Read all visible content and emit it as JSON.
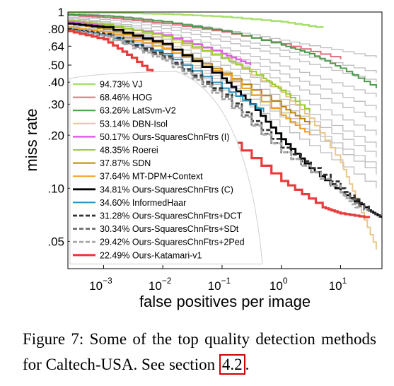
{
  "chart_data": {
    "type": "line",
    "xlabel": "false positives per image",
    "ylabel": "miss rate",
    "xscale": "log",
    "yscale": "log",
    "xlim": [
      0.00025,
      50
    ],
    "ylim": [
      0.035,
      1
    ],
    "x_ticks": [
      {
        "value": 0.001,
        "base": "10",
        "exp": "−3"
      },
      {
        "value": 0.01,
        "base": "10",
        "exp": "−2"
      },
      {
        "value": 0.1,
        "base": "10",
        "exp": "−1"
      },
      {
        "value": 1,
        "base": "10",
        "exp": "0"
      },
      {
        "value": 10,
        "base": "10",
        "exp": "1"
      }
    ],
    "y_ticks": [
      {
        "value": 1,
        "label": "1"
      },
      {
        "value": 0.8,
        "label": ".80"
      },
      {
        "value": 0.64,
        "label": ".64"
      },
      {
        "value": 0.5,
        "label": ".50"
      },
      {
        "value": 0.4,
        "label": ".40"
      },
      {
        "value": 0.3,
        "label": ".30"
      },
      {
        "value": 0.2,
        "label": ".20"
      },
      {
        "value": 0.1,
        "label": ".10"
      },
      {
        "value": 0.05,
        "label": ".05"
      }
    ],
    "grid": false,
    "legend_position": "bottom-left",
    "background_series_color": "#bdbdbd",
    "series": [
      {
        "name": "94.73% VJ",
        "color": "#a8e06e",
        "dash": "solid",
        "width": 2.5,
        "x": [
          0.00025,
          0.001,
          0.01,
          0.1,
          1,
          5
        ],
        "y": [
          0.995,
          0.99,
          0.975,
          0.94,
          0.88,
          0.81
        ]
      },
      {
        "name": "68.46% HOG",
        "color": "#e06e7e",
        "dash": "solid",
        "width": 2,
        "x": [
          0.00025,
          0.001,
          0.01,
          0.1,
          1,
          10
        ],
        "y": [
          0.96,
          0.93,
          0.86,
          0.77,
          0.66,
          0.54
        ]
      },
      {
        "name": "63.26% LatSvm-V2",
        "color": "#4a9a4a",
        "dash": "solid",
        "width": 2,
        "x": [
          0.00025,
          0.001,
          0.01,
          0.1,
          1,
          3,
          10,
          40
        ],
        "y": [
          0.97,
          0.95,
          0.88,
          0.78,
          0.65,
          0.58,
          0.48,
          0.37
        ]
      },
      {
        "name": "53.14% DBN-Isol",
        "color": "#e8c78c",
        "dash": "solid",
        "width": 2,
        "x": [
          0.00025,
          0.001,
          0.01,
          0.1,
          1,
          3,
          10,
          20,
          40
        ],
        "y": [
          0.86,
          0.82,
          0.7,
          0.55,
          0.35,
          0.25,
          0.14,
          0.08,
          0.045
        ]
      },
      {
        "name": "50.17% Ours-SquaresChnFtrs (I)",
        "color": "#e25ee8",
        "dash": "solid",
        "width": 2.5,
        "x": [
          0.00025,
          0.001,
          0.01,
          0.1,
          0.3
        ],
        "y": [
          0.88,
          0.84,
          0.74,
          0.58,
          0.5
        ]
      },
      {
        "name": "48.35% Roerei",
        "color": "#9acd32",
        "dash": "solid",
        "width": 2,
        "x": [
          0.00025,
          0.001,
          0.01,
          0.1,
          0.5,
          1,
          3
        ],
        "y": [
          0.9,
          0.85,
          0.73,
          0.55,
          0.42,
          0.36,
          0.27
        ]
      },
      {
        "name": "37.87% SDN",
        "color": "#b8860b",
        "dash": "solid",
        "width": 2,
        "x": [
          0.00025,
          0.001,
          0.01,
          0.1,
          1,
          3
        ],
        "y": [
          0.86,
          0.8,
          0.65,
          0.45,
          0.29,
          0.23
        ]
      },
      {
        "name": "37.64% MT-DPM+Context",
        "color": "#f0a020",
        "dash": "solid",
        "width": 2,
        "x": [
          0.00025,
          0.001,
          0.01,
          0.1,
          1,
          3
        ],
        "y": [
          0.82,
          0.77,
          0.62,
          0.44,
          0.26,
          0.2
        ]
      },
      {
        "name": "34.81% Ours-SquaresChnFtrs (C)",
        "color": "#000000",
        "dash": "solid",
        "width": 2.8,
        "x": [
          0.00025,
          0.001,
          0.01,
          0.1,
          0.3,
          1,
          3,
          10,
          30,
          50
        ],
        "y": [
          0.86,
          0.82,
          0.66,
          0.42,
          0.3,
          0.19,
          0.13,
          0.095,
          0.075,
          0.068
        ]
      },
      {
        "name": "34.60% InformedHaar",
        "color": "#2a8fc0",
        "dash": "solid",
        "width": 2,
        "x": [
          0.00025,
          0.001,
          0.01,
          0.1,
          0.5
        ],
        "y": [
          0.8,
          0.74,
          0.58,
          0.37,
          0.27
        ]
      },
      {
        "name": "31.28% Ours-SquaresChnFtrs+DCT",
        "color": "#303030",
        "dash": "dash",
        "width": 2.8,
        "x": [
          0.00025,
          0.001,
          0.01,
          0.1,
          1,
          10,
          30,
          50
        ],
        "y": [
          0.8,
          0.75,
          0.56,
          0.34,
          0.17,
          0.1,
          0.075,
          0.068
        ]
      },
      {
        "name": "30.34% Ours-SquaresChnFtrs+SDt",
        "color": "#6e6e6e",
        "dash": "dash",
        "width": 2.8,
        "x": [
          0.00025,
          0.001,
          0.01,
          0.1,
          1,
          10,
          30
        ],
        "y": [
          0.78,
          0.73,
          0.55,
          0.33,
          0.16,
          0.095,
          0.072
        ]
      },
      {
        "name": "29.42% Ours-SquaresChnFtrs+2Ped",
        "color": "#a8a8a8",
        "dash": "dash",
        "width": 2.8,
        "x": [
          0.00025,
          0.001,
          0.01,
          0.1,
          1,
          10,
          20
        ],
        "y": [
          0.79,
          0.73,
          0.53,
          0.32,
          0.16,
          0.095,
          0.075
        ]
      },
      {
        "name": "22.49% Ours-Katamari-v1",
        "color": "#e83c3c",
        "dash": "solid",
        "width": 3.2,
        "x": [
          0.00025,
          0.001,
          0.003,
          0.01,
          0.05,
          0.1,
          1,
          5,
          10,
          30
        ],
        "y": [
          0.78,
          0.7,
          0.55,
          0.4,
          0.25,
          0.2,
          0.11,
          0.078,
          0.072,
          0.068
        ]
      }
    ]
  },
  "caption": {
    "prefix": "Figure 7: Some of the top quality detection methods for Caltech-USA. See section ",
    "ref": "4.2",
    "suffix": "."
  }
}
